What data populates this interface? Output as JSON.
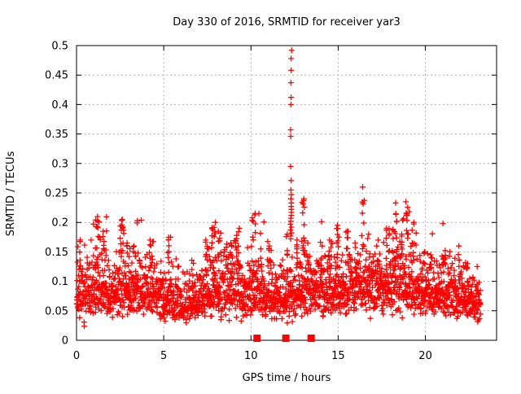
{
  "chart_data": {
    "type": "scatter",
    "title": "Day 330 of 2016, SRMTID for receiver yar3",
    "xlabel": "GPS time / hours",
    "ylabel": "SRMTID / TECUs",
    "xlim": [
      0,
      24.08
    ],
    "ylim": [
      0,
      0.5
    ],
    "x_ticks": [
      0,
      5,
      10,
      15,
      20
    ],
    "x_tick_labels": [
      "0",
      "5",
      "10",
      "15",
      "20"
    ],
    "y_ticks": [
      0,
      0.05,
      0.1,
      0.15,
      0.2,
      0.25,
      0.3,
      0.35,
      0.4,
      0.45,
      0.5
    ],
    "y_tick_labels": [
      "0",
      "0.05",
      "0.1",
      "0.15",
      "0.2",
      "0.25",
      "0.3",
      "0.35",
      "0.4",
      "0.45",
      "0.5"
    ],
    "grid": true,
    "legend_position": "none",
    "marker": "plus",
    "colors": {
      "points": "#ff0000",
      "grid": "#b0b0b0",
      "axis": "#000000",
      "background": "#ffffff",
      "text": "#000000"
    },
    "data_time_range_hours": [
      0,
      23.17
    ],
    "approx_point_count": 2400,
    "band_noise_sigma": 0.32,
    "band_median": {
      "x": [
        0,
        0.7,
        1.2,
        2.0,
        2.6,
        3.2,
        4.0,
        4.8,
        5.5,
        6.2,
        7.0,
        7.8,
        8.5,
        9.2,
        9.7,
        10.2,
        11.0,
        11.8,
        12.4,
        13.0,
        13.8,
        14.5,
        15.2,
        16.0,
        16.8,
        17.5,
        18.3,
        19.0,
        19.7,
        20.5,
        21.3,
        22.0,
        22.7,
        23.17
      ],
      "y": [
        0.082,
        0.078,
        0.088,
        0.08,
        0.09,
        0.082,
        0.08,
        0.075,
        0.07,
        0.062,
        0.068,
        0.088,
        0.092,
        0.09,
        0.072,
        0.088,
        0.078,
        0.068,
        0.075,
        0.088,
        0.08,
        0.085,
        0.092,
        0.088,
        0.095,
        0.09,
        0.1,
        0.098,
        0.088,
        0.082,
        0.085,
        0.078,
        0.07,
        0.058
      ]
    },
    "peaks": [
      [
        0.15,
        0.1,
        0.17,
        6
      ],
      [
        1.2,
        0.12,
        0.21,
        12
      ],
      [
        1.55,
        0.08,
        0.185,
        6
      ],
      [
        2.6,
        0.1,
        0.205,
        10
      ],
      [
        2.95,
        0.12,
        0.165,
        7
      ],
      [
        3.3,
        0.1,
        0.16,
        6
      ],
      [
        4.3,
        0.12,
        0.17,
        8
      ],
      [
        5.3,
        0.1,
        0.175,
        8
      ],
      [
        6.6,
        0.08,
        0.12,
        5
      ],
      [
        7.5,
        0.12,
        0.17,
        8
      ],
      [
        7.85,
        0.12,
        0.2,
        12
      ],
      [
        8.2,
        0.08,
        0.185,
        6
      ],
      [
        8.9,
        0.1,
        0.165,
        6
      ],
      [
        9.25,
        0.15,
        0.19,
        10
      ],
      [
        10.15,
        0.12,
        0.215,
        12
      ],
      [
        10.6,
        0.08,
        0.155,
        5
      ],
      [
        11.05,
        0.08,
        0.16,
        5
      ],
      [
        12.05,
        0.06,
        0.18,
        6
      ],
      [
        12.65,
        0.06,
        0.17,
        5
      ],
      [
        13.0,
        0.1,
        0.24,
        14
      ],
      [
        13.3,
        0.06,
        0.165,
        5
      ],
      [
        14.05,
        0.08,
        0.16,
        6
      ],
      [
        14.55,
        0.08,
        0.17,
        6
      ],
      [
        14.95,
        0.1,
        0.195,
        10
      ],
      [
        15.5,
        0.08,
        0.185,
        7
      ],
      [
        16.0,
        0.08,
        0.165,
        6
      ],
      [
        16.43,
        0.09,
        0.26,
        10
      ],
      [
        16.75,
        0.06,
        0.18,
        5
      ],
      [
        17.3,
        0.1,
        0.17,
        7
      ],
      [
        17.85,
        0.1,
        0.19,
        8
      ],
      [
        18.25,
        0.12,
        0.233,
        12
      ],
      [
        18.6,
        0.08,
        0.18,
        6
      ],
      [
        18.98,
        0.1,
        0.235,
        12
      ],
      [
        19.3,
        0.08,
        0.2,
        8
      ],
      [
        19.9,
        0.08,
        0.15,
        5
      ],
      [
        20.3,
        0.08,
        0.145,
        5
      ],
      [
        21.1,
        0.08,
        0.14,
        5
      ],
      [
        21.9,
        0.08,
        0.16,
        5
      ],
      [
        22.4,
        0.06,
        0.13,
        4
      ]
    ],
    "main_spike": {
      "x": 12.3,
      "values": [
        0.492,
        0.478,
        0.458,
        0.437,
        0.412,
        0.4,
        0.357,
        0.346,
        0.295,
        0.271,
        0.255,
        0.247,
        0.24,
        0.233,
        0.227,
        0.222,
        0.217,
        0.212,
        0.207,
        0.202,
        0.197,
        0.192,
        0.187,
        0.182,
        0.177,
        0.172
      ]
    },
    "axis_event_markers": {
      "marker": "filled-square",
      "y": 0,
      "x": [
        10.35,
        12.0,
        13.45
      ]
    },
    "seed": 11
  }
}
